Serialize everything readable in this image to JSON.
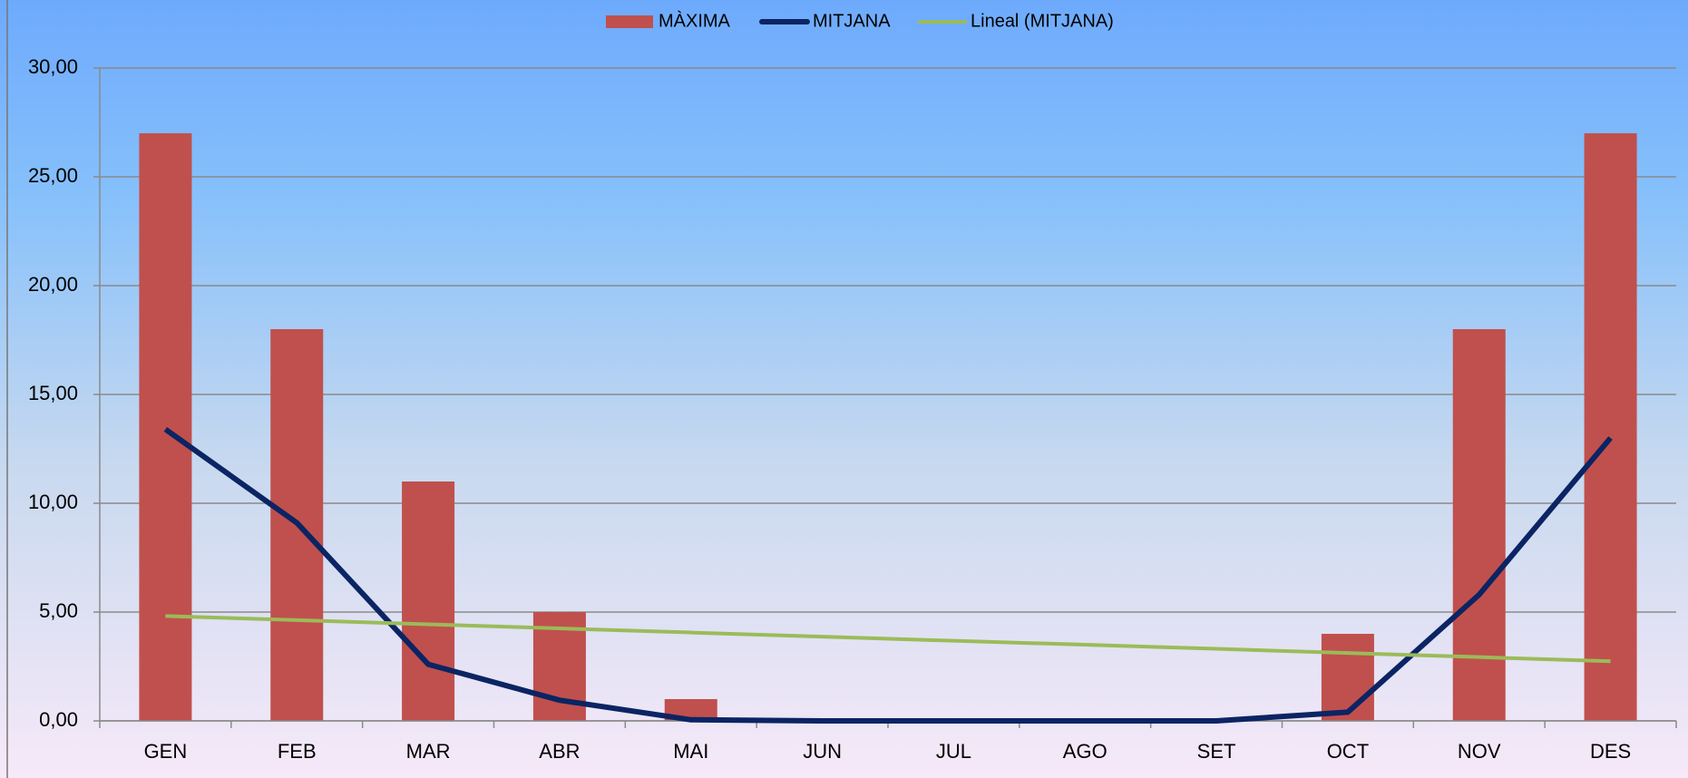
{
  "chart_data": {
    "type": "bar_line",
    "categories": [
      "GEN",
      "FEB",
      "MAR",
      "ABR",
      "MAI",
      "JUN",
      "JUL",
      "AGO",
      "SET",
      "OCT",
      "NOV",
      "DES"
    ],
    "series": [
      {
        "name": "MÀXIMA",
        "type": "bar",
        "color": "#c0504d",
        "values": [
          27,
          18,
          11,
          5,
          1,
          0,
          0,
          0,
          0,
          4,
          18,
          27
        ]
      },
      {
        "name": "MITJANA",
        "type": "line",
        "color": "#0b2463",
        "values": [
          13.4,
          9.1,
          2.6,
          0.95,
          0.05,
          0,
          0,
          0,
          0,
          0.4,
          5.8,
          13
        ]
      },
      {
        "name": "Lineal (MITJANA)",
        "type": "line",
        "color": "#9bbb59",
        "values": [
          4.82,
          4.63,
          4.44,
          4.25,
          4.06,
          3.87,
          3.68,
          3.5,
          3.31,
          3.12,
          2.93,
          2.74
        ]
      }
    ],
    "ylim": [
      0,
      30
    ],
    "yticks": [
      {
        "value": 0,
        "label": "0,00"
      },
      {
        "value": 5,
        "label": "5,00"
      },
      {
        "value": 10,
        "label": "10,00"
      },
      {
        "value": 15,
        "label": "15,00"
      },
      {
        "value": 20,
        "label": "20,00"
      },
      {
        "value": 25,
        "label": "25,00"
      },
      {
        "value": 30,
        "label": "30,00"
      }
    ],
    "grid": true,
    "legend": "top"
  }
}
